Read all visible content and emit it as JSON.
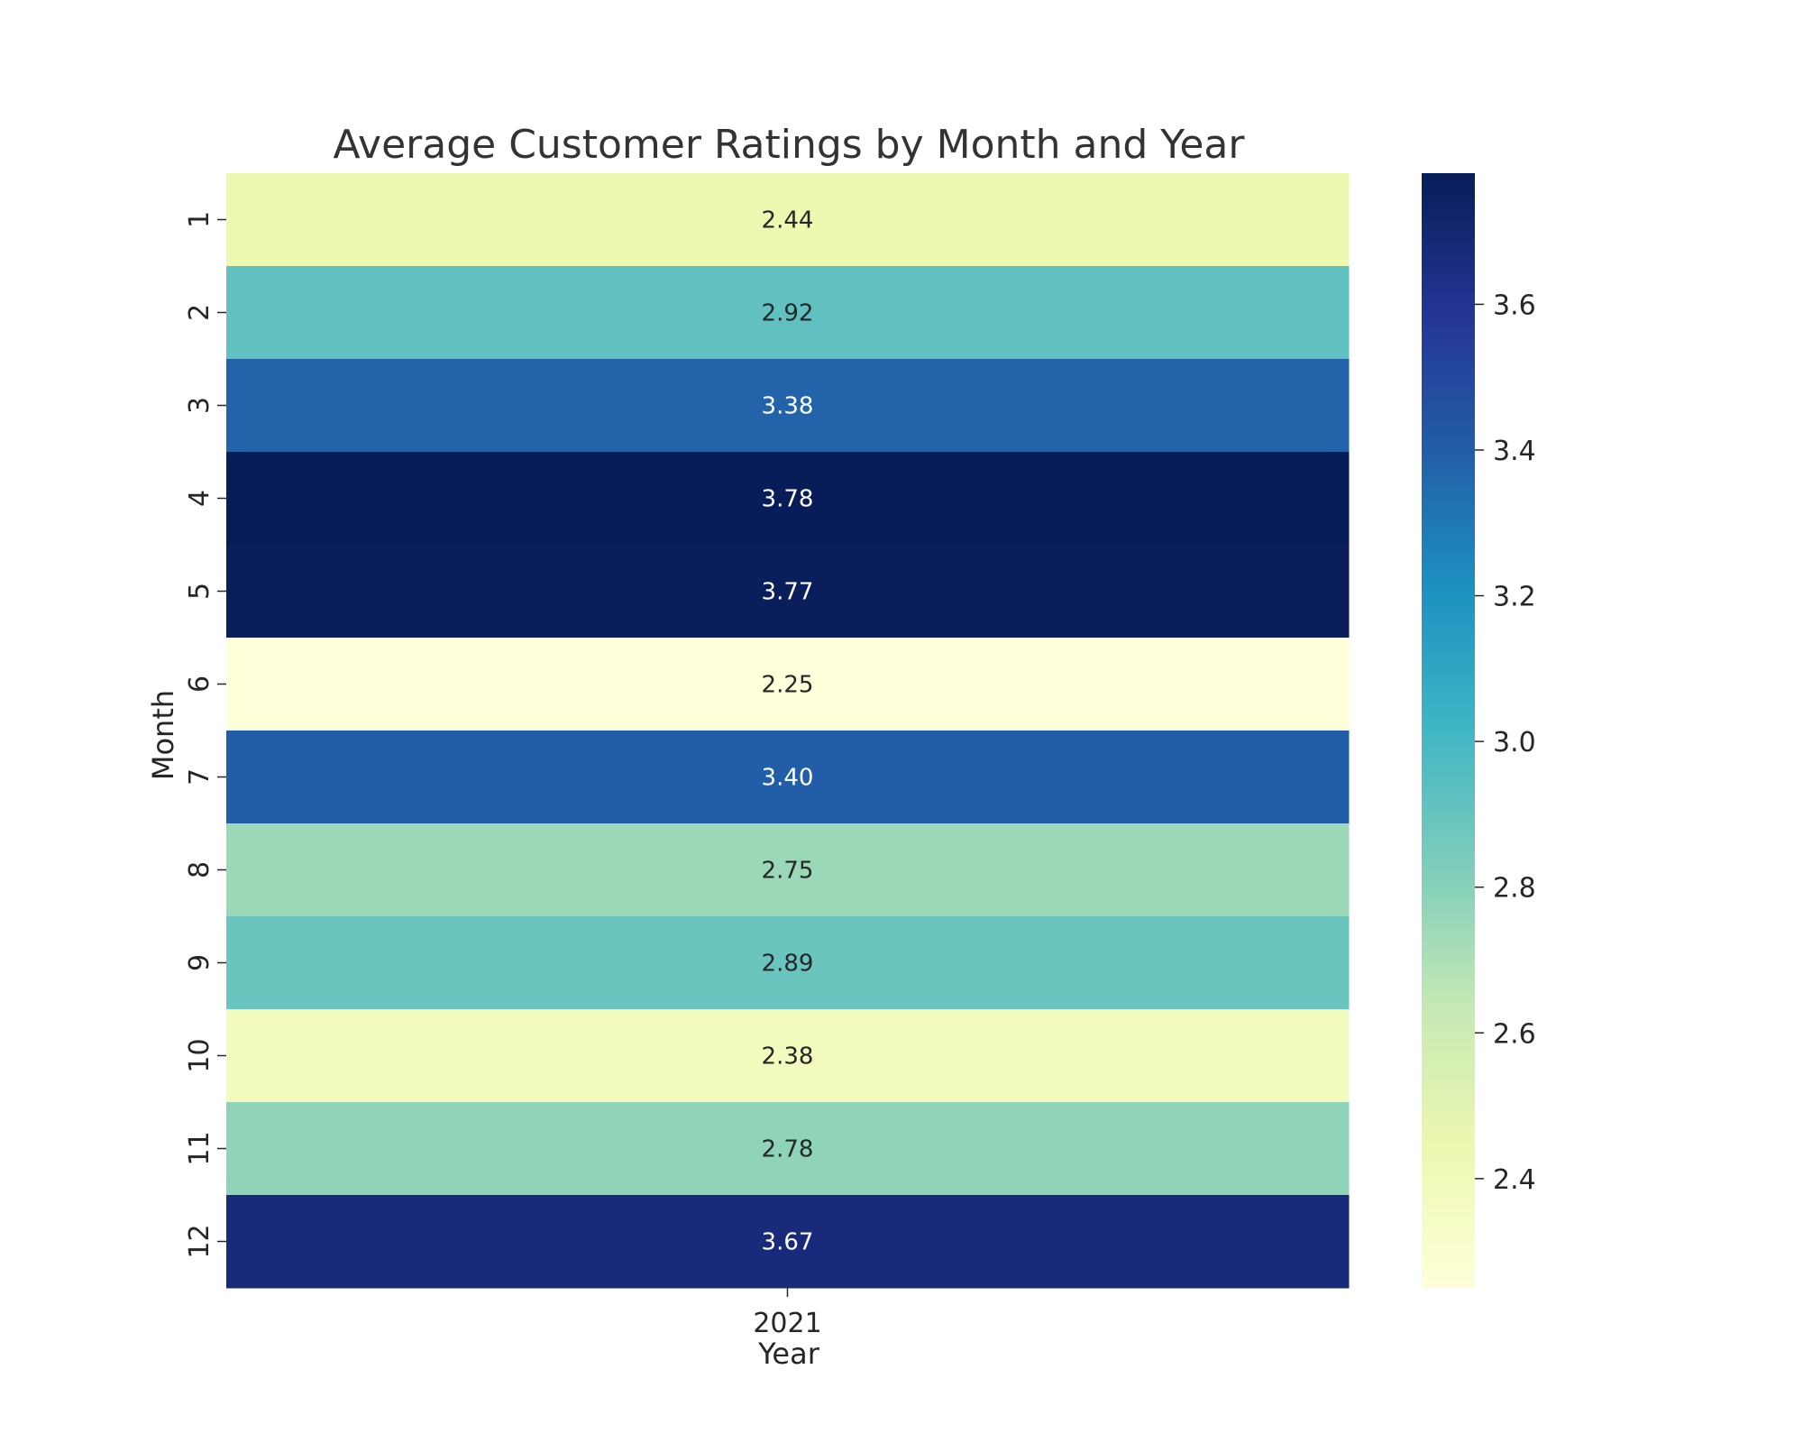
{
  "chart_data": {
    "type": "heatmap",
    "title": "Average Customer Ratings by Month and Year",
    "xlabel": "Year",
    "ylabel": "Month",
    "x_categories": [
      "2021"
    ],
    "y_categories": [
      "1",
      "2",
      "3",
      "4",
      "5",
      "6",
      "7",
      "8",
      "9",
      "10",
      "11",
      "12"
    ],
    "values": [
      [
        2.44
      ],
      [
        2.92
      ],
      [
        3.38
      ],
      [
        3.78
      ],
      [
        3.77
      ],
      [
        2.25
      ],
      [
        3.4
      ],
      [
        2.75
      ],
      [
        2.89
      ],
      [
        2.38
      ],
      [
        2.78
      ],
      [
        3.67
      ]
    ],
    "value_labels": [
      [
        "2.44"
      ],
      [
        "2.92"
      ],
      [
        "3.38"
      ],
      [
        "3.78"
      ],
      [
        "3.77"
      ],
      [
        "2.25"
      ],
      [
        "3.40"
      ],
      [
        "2.75"
      ],
      [
        "2.89"
      ],
      [
        "2.38"
      ],
      [
        "2.78"
      ],
      [
        "3.67"
      ]
    ],
    "colormap": "YlGnBu",
    "colorbar": {
      "range": [
        2.25,
        3.78
      ],
      "ticks": [
        2.4,
        2.6,
        2.8,
        3.0,
        3.2,
        3.4,
        3.6
      ],
      "tick_labels": [
        "2.4",
        "2.6",
        "2.8",
        "3.0",
        "3.2",
        "3.4",
        "3.6"
      ],
      "placement": "right"
    },
    "grid": false,
    "annotated": true
  }
}
